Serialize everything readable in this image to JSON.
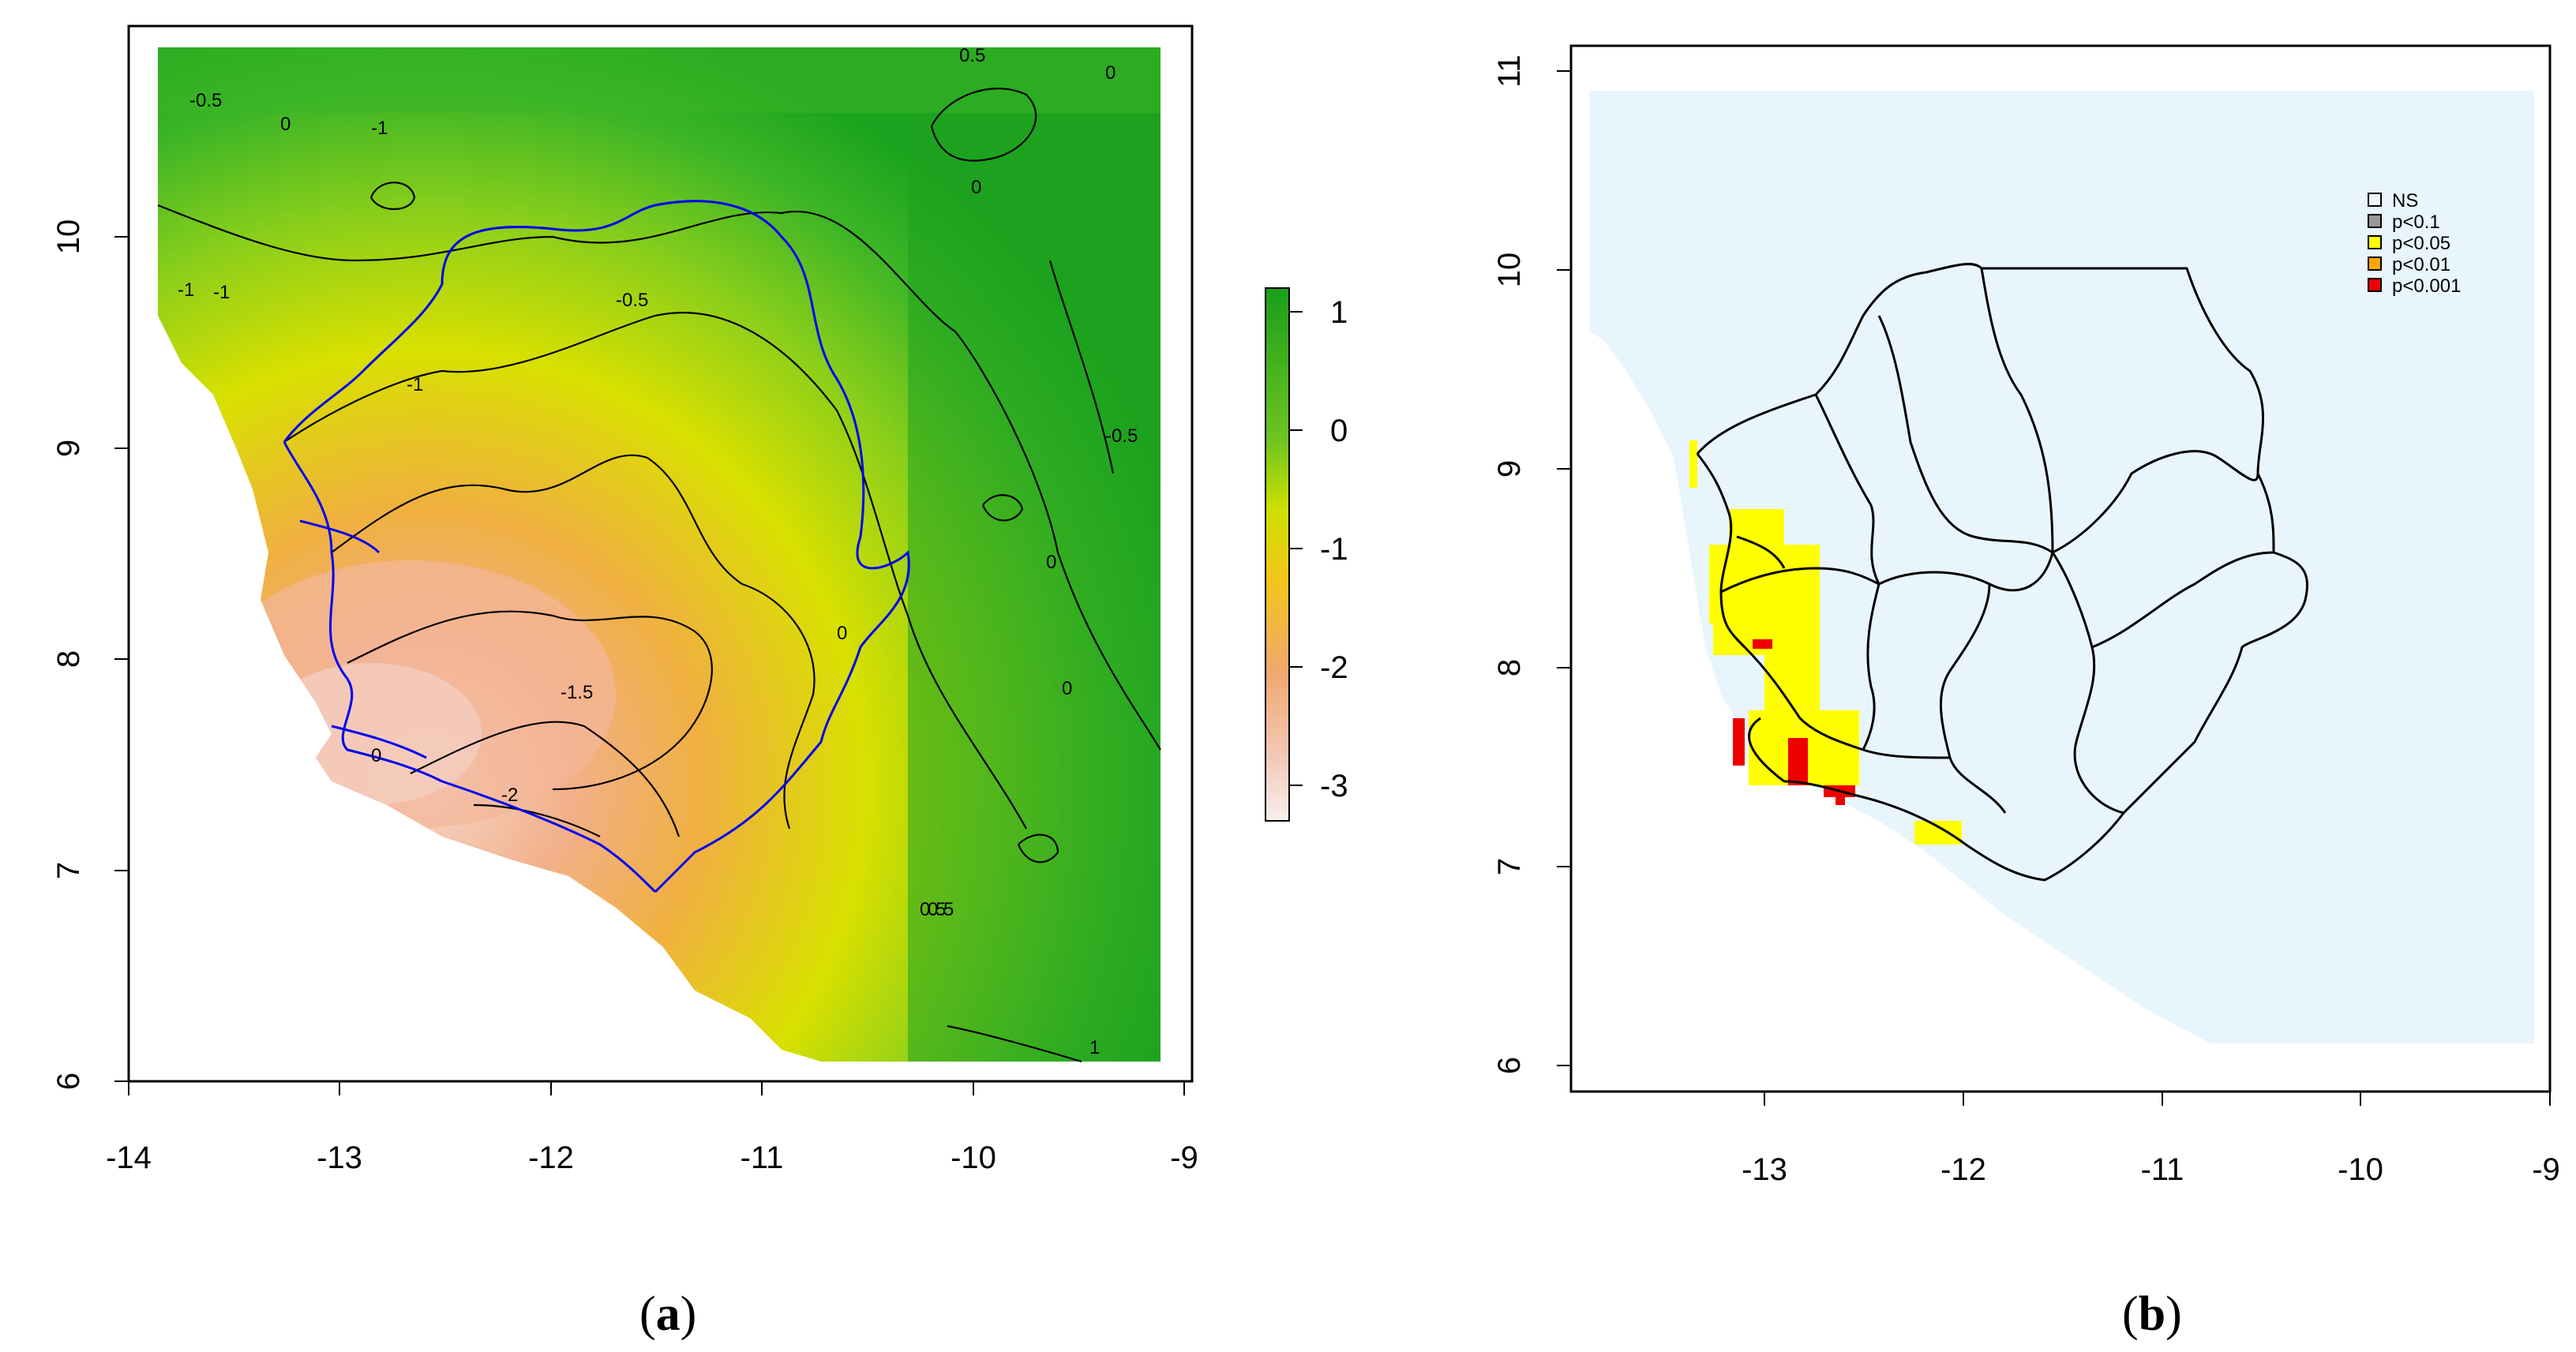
{
  "panel_a": {
    "caption_letter": "a",
    "x_ticks": [
      "-14",
      "-13",
      "-12",
      "-11",
      "-10",
      "-9"
    ],
    "y_ticks": [
      "6",
      "7",
      "8",
      "9",
      "10"
    ],
    "colorbar_ticks": [
      "1",
      "0",
      "-1",
      "-2",
      "-3"
    ],
    "contour_labels": [
      "0.5",
      "0",
      "-0.5",
      "-1",
      "0",
      "-1",
      "0",
      "-0.5",
      "-1",
      "-0.5",
      "0.5",
      "0",
      "0",
      "0",
      "-1.5",
      "-2",
      "-1",
      "0",
      "0.5",
      "1"
    ],
    "colors": {
      "high": "#1fa31f",
      "mid": "#dddd00",
      "low": "#f0a070",
      "lowest": "#f5e0dc",
      "river": "#0000ee"
    }
  },
  "panel_b": {
    "caption_letter": "b",
    "x_ticks": [
      "-13",
      "-12",
      "-11",
      "-10",
      "-9"
    ],
    "y_ticks": [
      "6",
      "7",
      "8",
      "9",
      "10",
      "11"
    ],
    "legend": [
      {
        "label": "NS",
        "color": "#eef6fc"
      },
      {
        "label": "p<0.1",
        "color": "#999999"
      },
      {
        "label": "p<0.05",
        "color": "#ffff00"
      },
      {
        "label": "p<0.01",
        "color": "#ffa500"
      },
      {
        "label": "p<0.001",
        "color": "#ee0000"
      }
    ],
    "colors": {
      "ns": "#e9f5fd",
      "yellow": "#ffff00",
      "red": "#ee0000"
    }
  }
}
